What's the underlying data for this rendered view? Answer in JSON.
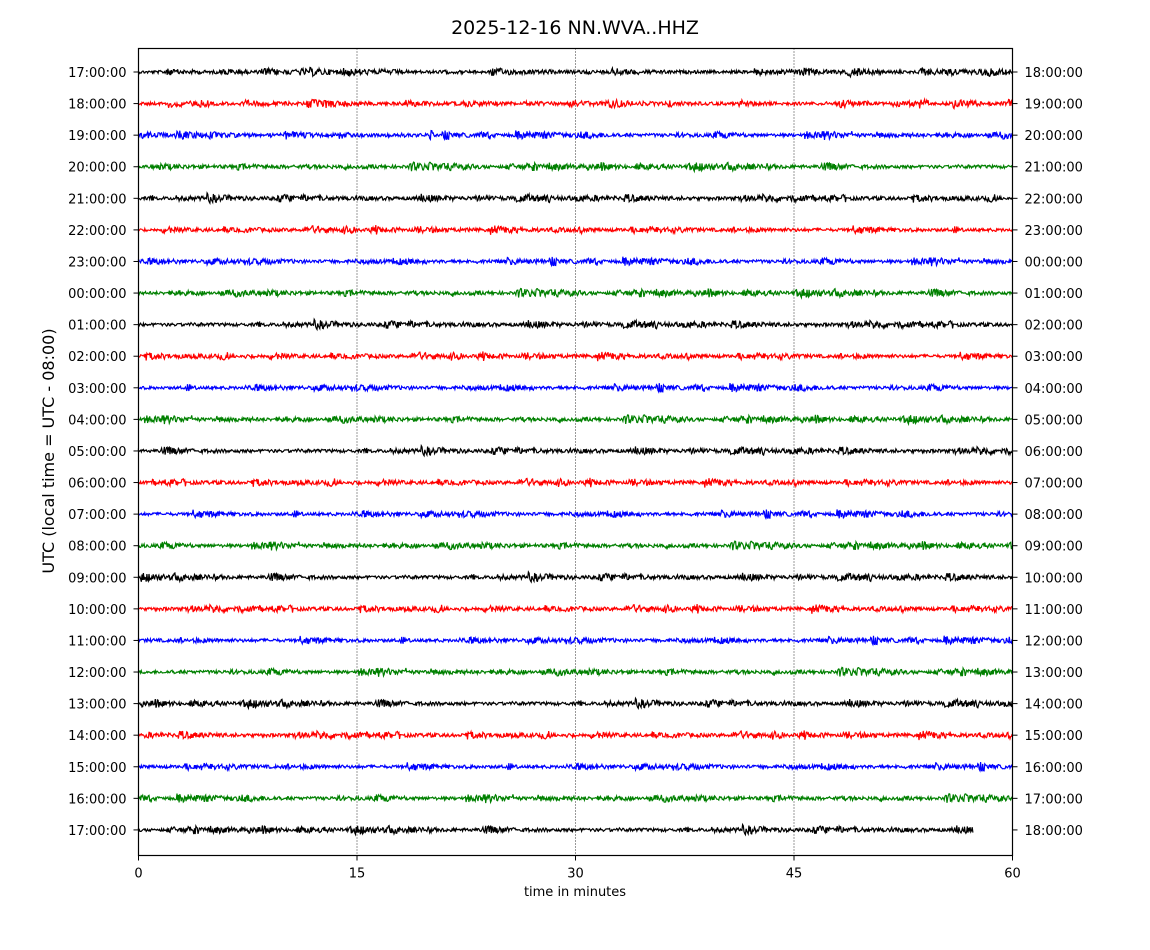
{
  "chart_data": {
    "type": "line",
    "subtype": "helicorder",
    "title": "2025-12-16 NN.WVA..HHZ",
    "xlabel": "time in minutes",
    "ylabel": "UTC (local time = UTC - 08:00)",
    "xlim": [
      0,
      60
    ],
    "xticks": [
      0,
      15,
      30,
      45,
      60
    ],
    "grid": "vertical dotted at 15, 30, 45",
    "trace_colors": [
      "#000000",
      "#ff0000",
      "#0000ff",
      "#008000"
    ],
    "left_labels": [
      "17:00:00",
      "18:00:00",
      "19:00:00",
      "20:00:00",
      "21:00:00",
      "22:00:00",
      "23:00:00",
      "00:00:00",
      "01:00:00",
      "02:00:00",
      "03:00:00",
      "04:00:00",
      "05:00:00",
      "06:00:00",
      "07:00:00",
      "08:00:00",
      "09:00:00",
      "10:00:00",
      "11:00:00",
      "12:00:00",
      "13:00:00",
      "14:00:00",
      "15:00:00",
      "16:00:00",
      "17:00:00"
    ],
    "right_labels": [
      "18:00:00",
      "19:00:00",
      "20:00:00",
      "21:00:00",
      "22:00:00",
      "23:00:00",
      "00:00:00",
      "01:00:00",
      "02:00:00",
      "03:00:00",
      "04:00:00",
      "05:00:00",
      "06:00:00",
      "07:00:00",
      "08:00:00",
      "09:00:00",
      "10:00:00",
      "11:00:00",
      "12:00:00",
      "13:00:00",
      "14:00:00",
      "15:00:00",
      "16:00:00",
      "17:00:00",
      "18:00:00"
    ],
    "last_trace_end_minute": 57.3
  }
}
